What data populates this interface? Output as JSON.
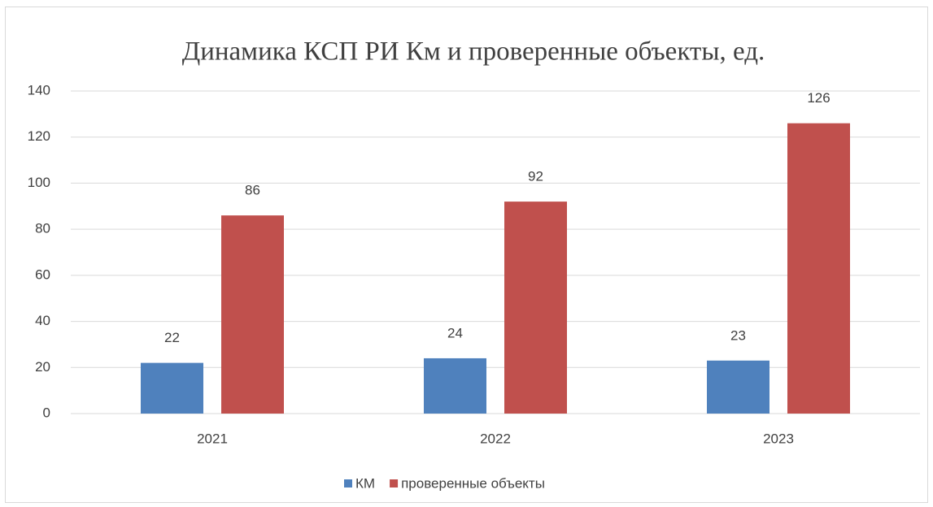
{
  "chart_data": {
    "type": "bar",
    "title": "Динамика КСП РИ Км и проверенные объекты, ед.",
    "categories": [
      "2021",
      "2022",
      "2023"
    ],
    "series": [
      {
        "name": "КМ",
        "color": "#4f81bd",
        "values": [
          22,
          24,
          23
        ]
      },
      {
        "name": "проверенные объекты",
        "color": "#c0504d",
        "values": [
          86,
          92,
          126
        ]
      }
    ],
    "ylim": [
      0,
      140
    ],
    "yticks": [
      0,
      20,
      40,
      60,
      80,
      100,
      120,
      140
    ],
    "grid": true,
    "legend": "bottom"
  }
}
